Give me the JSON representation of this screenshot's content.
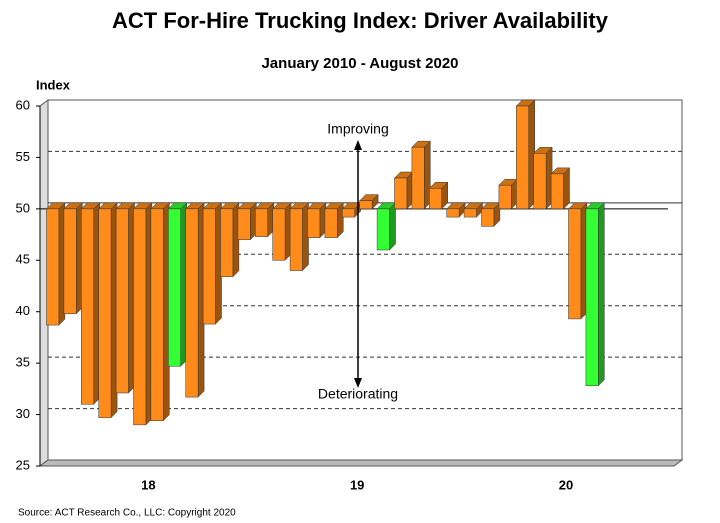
{
  "chart_data": {
    "type": "bar",
    "title": "ACT For-Hire Trucking Index: Driver Availability",
    "subtitle": "January 2010 - August 2020",
    "y_label": "Index",
    "source": "Source:  ACT Research Co., LLC: Copyright  2020",
    "annotations": [
      "Improving",
      "Deteriorating"
    ],
    "baseline": 50,
    "categories": [
      null,
      null,
      null,
      null,
      null,
      null,
      "18",
      null,
      null,
      null,
      null,
      null,
      null,
      null,
      null,
      null,
      null,
      null,
      "19",
      null,
      null,
      null,
      null,
      null,
      null,
      null,
      null,
      null,
      null,
      null,
      "20",
      null
    ],
    "values": [
      38.7,
      39.8,
      31.0,
      29.7,
      32.1,
      29.0,
      29.4,
      34.7,
      31.7,
      38.8,
      43.4,
      47.0,
      47.3,
      45.0,
      44.0,
      47.2,
      47.2,
      49.2,
      50.8,
      46.0,
      53.0,
      56.0,
      52.0,
      49.2,
      49.2,
      48.3,
      52.3,
      60.0,
      55.4,
      53.4,
      39.3,
      32.8
    ],
    "colors": [
      "#ff8c1a",
      "#ff8c1a",
      "#ff8c1a",
      "#ff8c1a",
      "#ff8c1a",
      "#ff8c1a",
      "#ff8c1a",
      "#33ff33",
      "#ff8c1a",
      "#ff8c1a",
      "#ff8c1a",
      "#ff8c1a",
      "#ff8c1a",
      "#ff8c1a",
      "#ff8c1a",
      "#ff8c1a",
      "#ff8c1a",
      "#ff8c1a",
      "#ff8c1a",
      "#33ff33",
      "#ff8c1a",
      "#ff8c1a",
      "#ff8c1a",
      "#ff8c1a",
      "#ff8c1a",
      "#ff8c1a",
      "#ff8c1a",
      "#ff8c1a",
      "#ff8c1a",
      "#ff8c1a",
      "#ff8c1a",
      "#33ff33"
    ],
    "ylim": [
      25,
      60
    ],
    "yticks": [
      25,
      30,
      35,
      40,
      45,
      50,
      55,
      60
    ],
    "grid": true
  }
}
